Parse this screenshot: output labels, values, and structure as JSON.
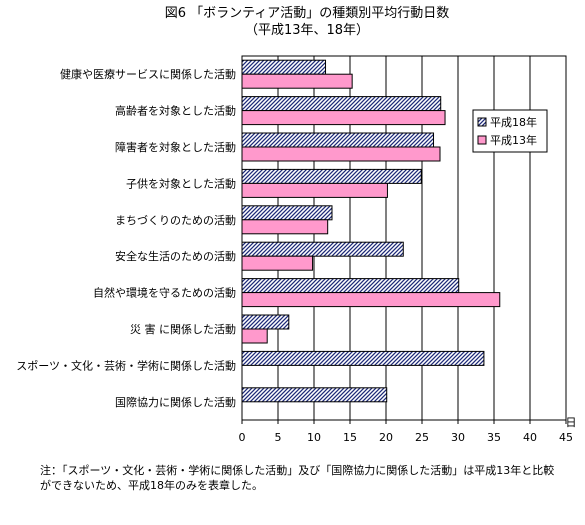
{
  "chart_data": {
    "type": "bar",
    "orientation": "horizontal",
    "title": "図6 「ボランティア活動」の種類別平均行動日数",
    "subtitle": "（平成13年、18年）",
    "unit": "日",
    "categories": [
      "健康や医療サービスに関係した活動",
      "高齢者を対象とした活動",
      "障害者を対象とした活動",
      "子供を対象とした活動",
      "まちづくりのための活動",
      "安全な生活のための活動",
      "自然や環境を守るための活動",
      "災 害 に関係した活動",
      "スポーツ・文化・芸術・学術に関係した活動",
      "国際協力に関係した活動"
    ],
    "series": [
      {
        "name": "平成18年",
        "pattern": "diagonal-hatch",
        "values": [
          11.6,
          27.6,
          26.6,
          24.9,
          12.5,
          22.4,
          30.1,
          6.5,
          33.6,
          20.1
        ]
      },
      {
        "name": "平成13年",
        "color": "#ff99cc",
        "values": [
          15.3,
          28.2,
          27.5,
          20.2,
          11.9,
          9.8,
          35.8,
          3.5,
          null,
          null
        ]
      }
    ],
    "xlim": [
      0,
      45
    ],
    "xticks": [
      0,
      5,
      10,
      15,
      20,
      25,
      30,
      35,
      40,
      45
    ],
    "grid": true,
    "legend_position": "top-right"
  },
  "note": "注：「スポーツ・文化・芸術・学術に関係した活動」及び「国際協力に関係した活動」は平成13年と比較\nができないため、平成18年のみを表章した。"
}
